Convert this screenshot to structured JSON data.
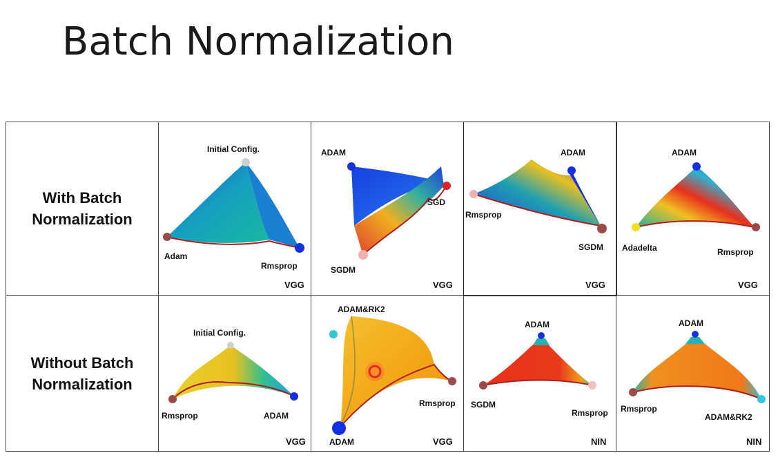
{
  "slide": {
    "title": "Batch Normalization"
  },
  "rows": [
    {
      "label": "With Batch\nNormalization"
    },
    {
      "label": "Without Batch\nNormalization"
    }
  ],
  "panels": [
    {
      "network": "VGG",
      "labels": [
        "Initial Config.",
        "Adam",
        "Rmsprop"
      ]
    },
    {
      "network": "VGG",
      "labels": [
        "ADAM",
        "SGD",
        "SGDM"
      ]
    },
    {
      "network": "VGG",
      "labels": [
        "ADAM",
        "Rmsprop",
        "SGDM"
      ]
    },
    {
      "network": "VGG",
      "labels": [
        "ADAM",
        "Adadelta",
        "Rmsprop"
      ]
    },
    {
      "network": "VGG",
      "labels": [
        "Initial Config.",
        "Rmsprop",
        "ADAM"
      ]
    },
    {
      "network": "VGG",
      "labels": [
        "ADAM&RK2",
        "Rmsprop",
        "ADAM"
      ]
    },
    {
      "network": "NIN",
      "labels": [
        "ADAM",
        "SGDM",
        "Rmsprop"
      ]
    },
    {
      "network": "NIN",
      "labels": [
        "ADAM",
        "Rmsprop",
        "ADAM&RK2"
      ]
    }
  ],
  "colors": {
    "blue": "#1538d6",
    "red": "#e63a1a",
    "orange": "#f39a12",
    "yellow": "#f0d020",
    "cyan": "#28c0d8",
    "edge": "#b01e1e"
  }
}
